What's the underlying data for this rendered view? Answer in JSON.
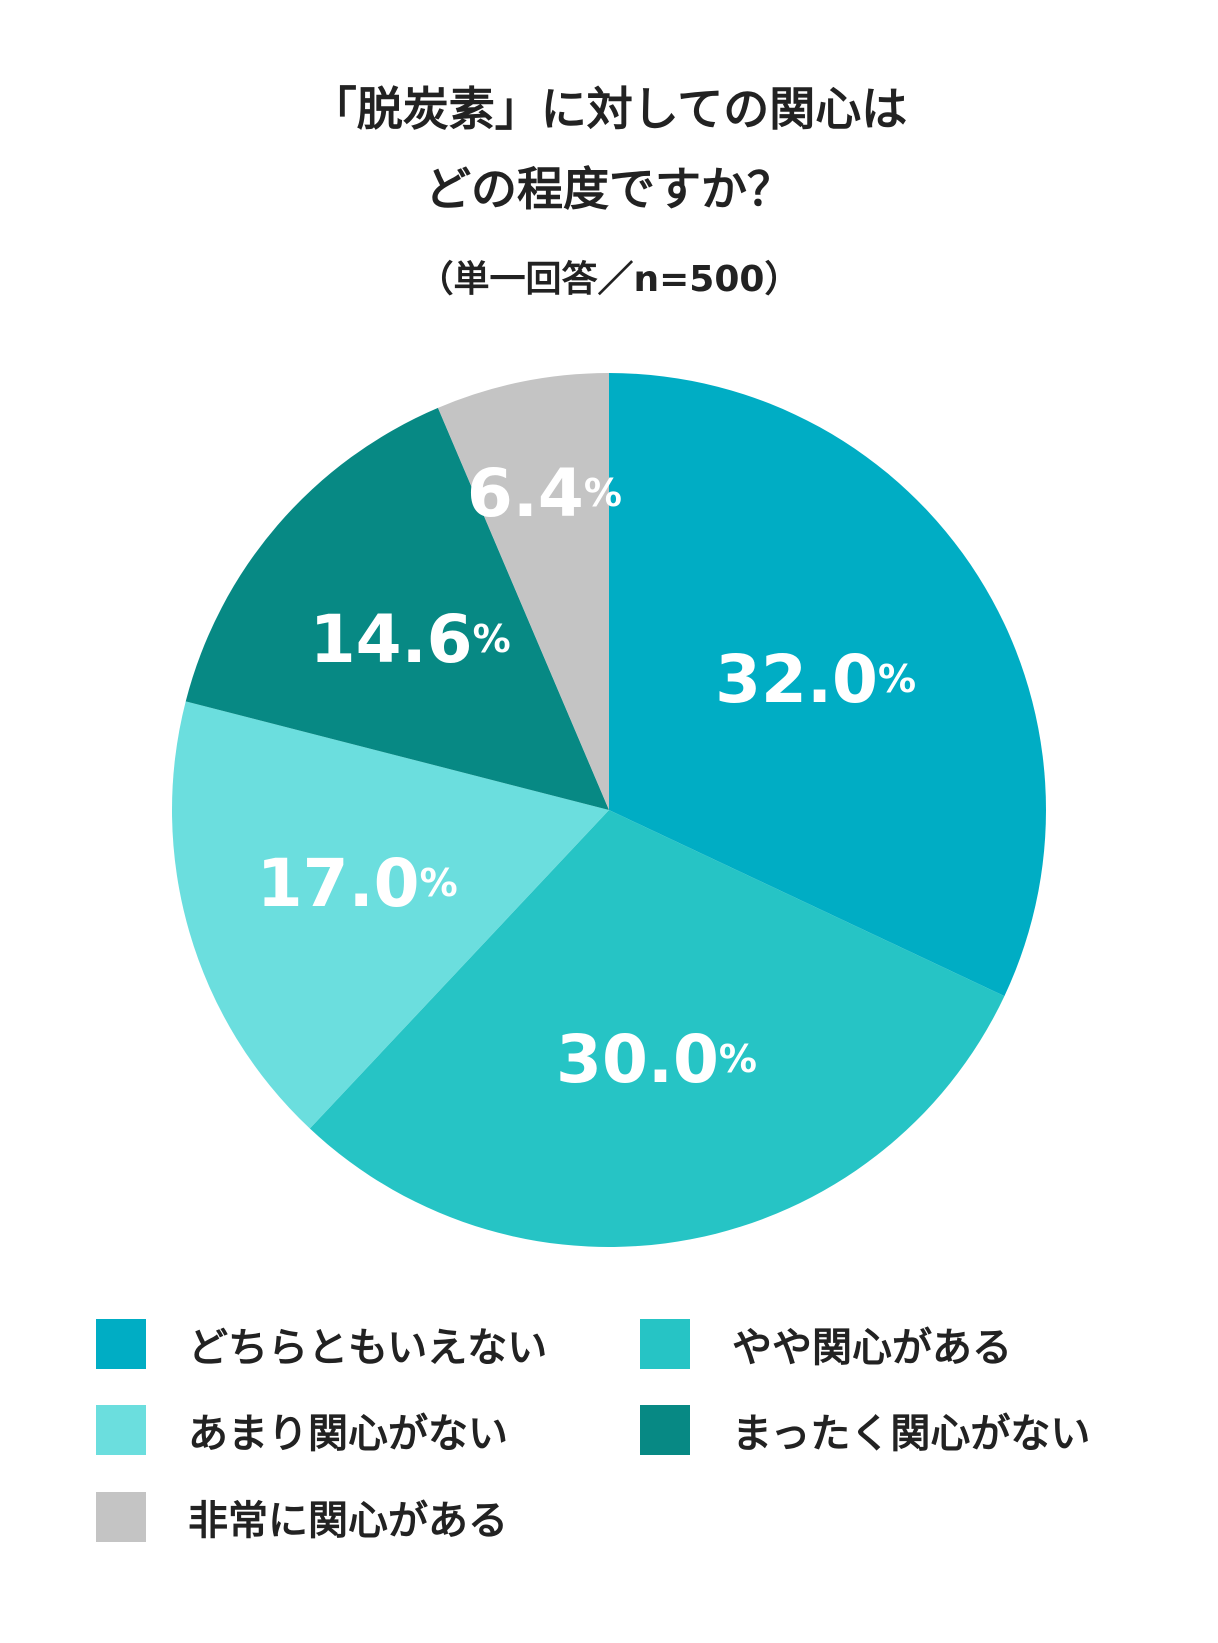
{
  "chart_data": {
    "type": "pie",
    "title_line1": "「脱炭素」に対しての関心は",
    "title_line2": "どの程度ですか？",
    "subtitle": "（単一回答／n=500）",
    "unit": "%",
    "slices": [
      {
        "label": "どちらともいえない",
        "value": 32.0,
        "value_text": "32.0",
        "color": "#00ADC4"
      },
      {
        "label": "やや関心がある",
        "value": 30.0,
        "value_text": "30.0",
        "color": "#26C4C5"
      },
      {
        "label": "あまり関心がない",
        "value": 17.0,
        "value_text": "17.0",
        "color": "#6BDEDE"
      },
      {
        "label": "まったく関心がない",
        "value": 14.6,
        "value_text": "14.6",
        "color": "#078984"
      },
      {
        "label": "非常に関心がある",
        "value": 6.4,
        "value_text": "6.4",
        "color": "#C4C4C4"
      }
    ],
    "start": "12 o'clock",
    "direction": "clockwise",
    "legend": {
      "placement": "bottom",
      "order": [
        "どちらともいえない",
        "やや関心がある",
        "あまり関心がない",
        "まったく関心がない",
        "非常に関心がある"
      ]
    }
  }
}
